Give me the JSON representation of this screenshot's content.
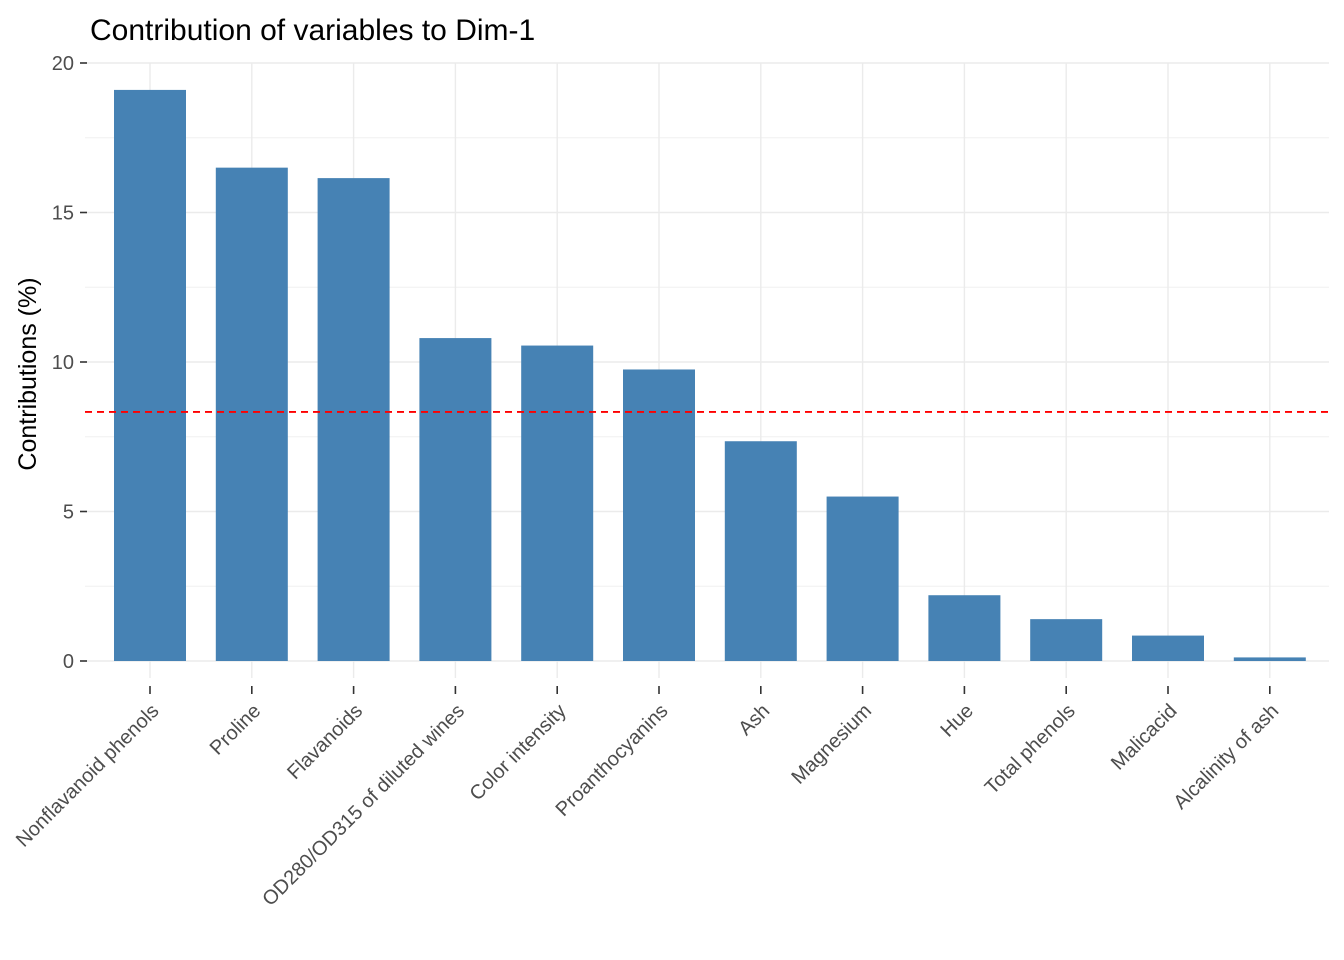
{
  "chart_data": {
    "type": "bar",
    "title": "Contribution of variables to Dim-1",
    "xlabel": "",
    "ylabel": "Contributions (%)",
    "categories": [
      "Nonflavanoid phenols",
      "Proline",
      "Flavanoids",
      "OD280/OD315 of diluted wines",
      "Color intensity",
      "Proanthocyanins",
      "Ash",
      "Magnesium",
      "Hue",
      "Total phenols",
      "Malicacid",
      "Alcalinity of ash"
    ],
    "values": [
      19.1,
      16.5,
      16.15,
      10.8,
      10.55,
      9.75,
      7.35,
      5.5,
      2.2,
      1.4,
      0.85,
      0.12
    ],
    "ylim": [
      0,
      20
    ],
    "yticks": [
      0,
      5,
      10,
      15,
      20
    ],
    "reference_line": {
      "value": 8.33,
      "style": "dashed",
      "color": "#ff0000"
    },
    "bar_color": "#4682b4",
    "grid": true,
    "legend": "none"
  }
}
